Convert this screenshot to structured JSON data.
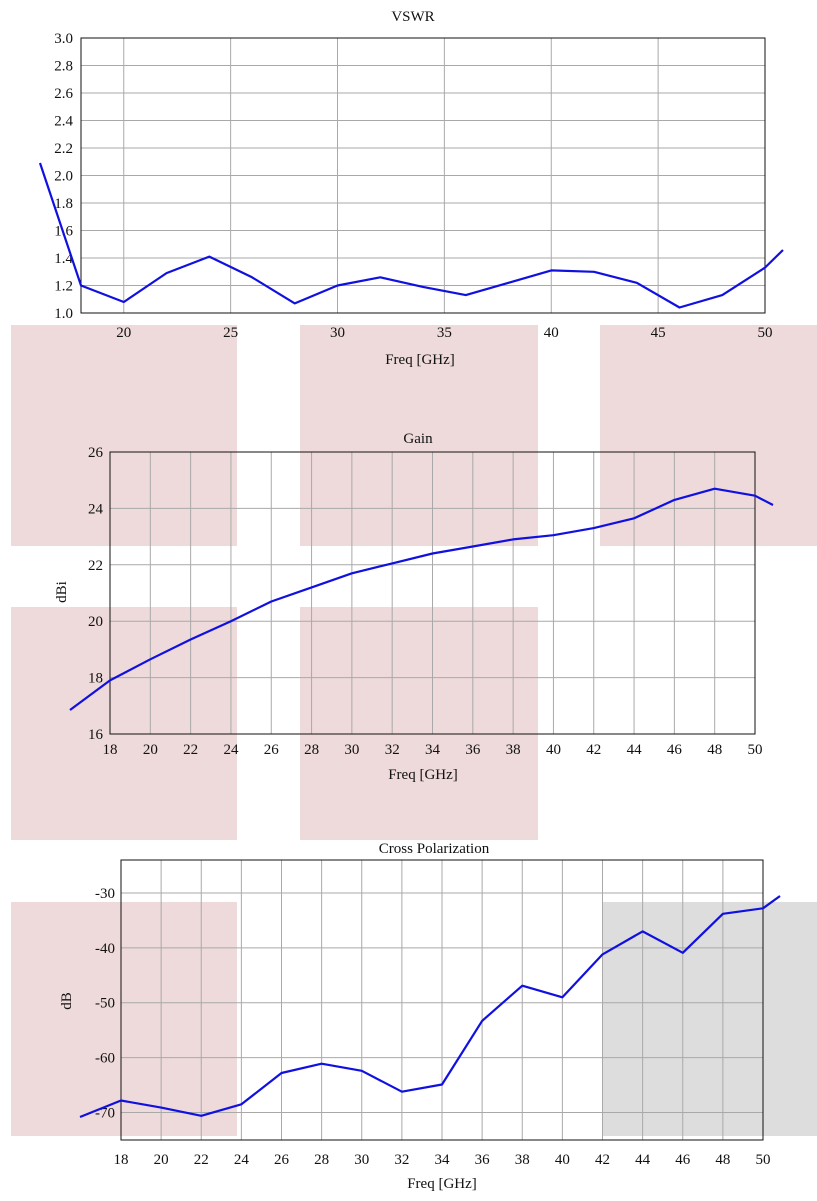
{
  "colors": {
    "series": "#1010e0",
    "shade_pink": "#eedada",
    "shade_gray": "#dddddd",
    "grid": "#a9a9a9",
    "axis": "#111111"
  },
  "chart_data": [
    {
      "type": "line",
      "title": "VSWR",
      "xlabel": "Freq [GHz]",
      "ylabel": "",
      "xlim": [
        18,
        50
      ],
      "ylim": [
        1.0,
        3.0
      ],
      "xticks": [
        20,
        25,
        30,
        35,
        40,
        45,
        50
      ],
      "yticks": [
        1.0,
        1.2,
        1.4,
        1.6,
        1.8,
        2.0,
        2.2,
        2.4,
        2.6,
        2.8,
        3.0
      ],
      "ytick_labels": [
        "1.0",
        "1.2",
        "1.4",
        "1.6",
        "1.8",
        "2.0",
        "2.2",
        "2.4",
        "2.6",
        "2.8",
        "3.0"
      ],
      "grid": true,
      "series": [
        {
          "x": [
            18,
            20,
            22,
            24,
            26,
            28,
            30,
            32,
            34,
            36,
            38,
            40,
            42,
            44,
            46,
            48,
            50
          ],
          "y": [
            1.2,
            1.08,
            1.29,
            1.41,
            1.26,
            1.07,
            1.2,
            1.26,
            1.19,
            1.13,
            1.22,
            1.31,
            1.3,
            1.22,
            1.04,
            1.13,
            1.33
          ],
          "extends_beyond_axes": true
        }
      ]
    },
    {
      "type": "line",
      "title": "Gain",
      "xlabel": "Freq [GHz]",
      "ylabel": "dBi",
      "xlim": [
        18,
        50
      ],
      "ylim": [
        16,
        26
      ],
      "xticks": [
        18,
        20,
        22,
        24,
        26,
        28,
        30,
        32,
        34,
        36,
        38,
        40,
        42,
        44,
        46,
        48,
        50
      ],
      "yticks": [
        16,
        18,
        20,
        22,
        24,
        26
      ],
      "grid": true,
      "series": [
        {
          "x": [
            18,
            20,
            22,
            24,
            26,
            28,
            30,
            32,
            34,
            36,
            38,
            40,
            42,
            44,
            46,
            48,
            50
          ],
          "y": [
            17.9,
            18.65,
            19.35,
            20.0,
            20.7,
            21.2,
            21.7,
            22.05,
            22.4,
            22.65,
            22.9,
            23.05,
            23.3,
            23.65,
            24.3,
            24.7,
            24.45
          ],
          "extends_beyond_axes": true
        }
      ]
    },
    {
      "type": "line",
      "title": "Cross Polarization",
      "xlabel": "Freq [GHz]",
      "ylabel": "dB",
      "xlim": [
        18,
        50
      ],
      "ylim": [
        -75,
        -24
      ],
      "xticks": [
        18,
        20,
        22,
        24,
        26,
        28,
        30,
        32,
        34,
        36,
        38,
        40,
        42,
        44,
        46,
        48,
        50
      ],
      "yticks": [
        -70,
        -60,
        -50,
        -40,
        -30
      ],
      "grid": true,
      "series": [
        {
          "x": [
            18,
            20,
            22,
            24,
            26,
            28,
            30,
            32,
            34,
            36,
            38,
            40,
            42,
            44,
            46,
            48,
            50
          ],
          "y": [
            -67.8,
            -69.1,
            -70.6,
            -68.5,
            -62.8,
            -61.1,
            -62.4,
            -66.2,
            -64.9,
            -53.3,
            -46.9,
            -49.0,
            -41.2,
            -37.0,
            -40.9,
            -33.8,
            -32.8
          ],
          "extends_beyond_axes": true
        }
      ]
    }
  ]
}
